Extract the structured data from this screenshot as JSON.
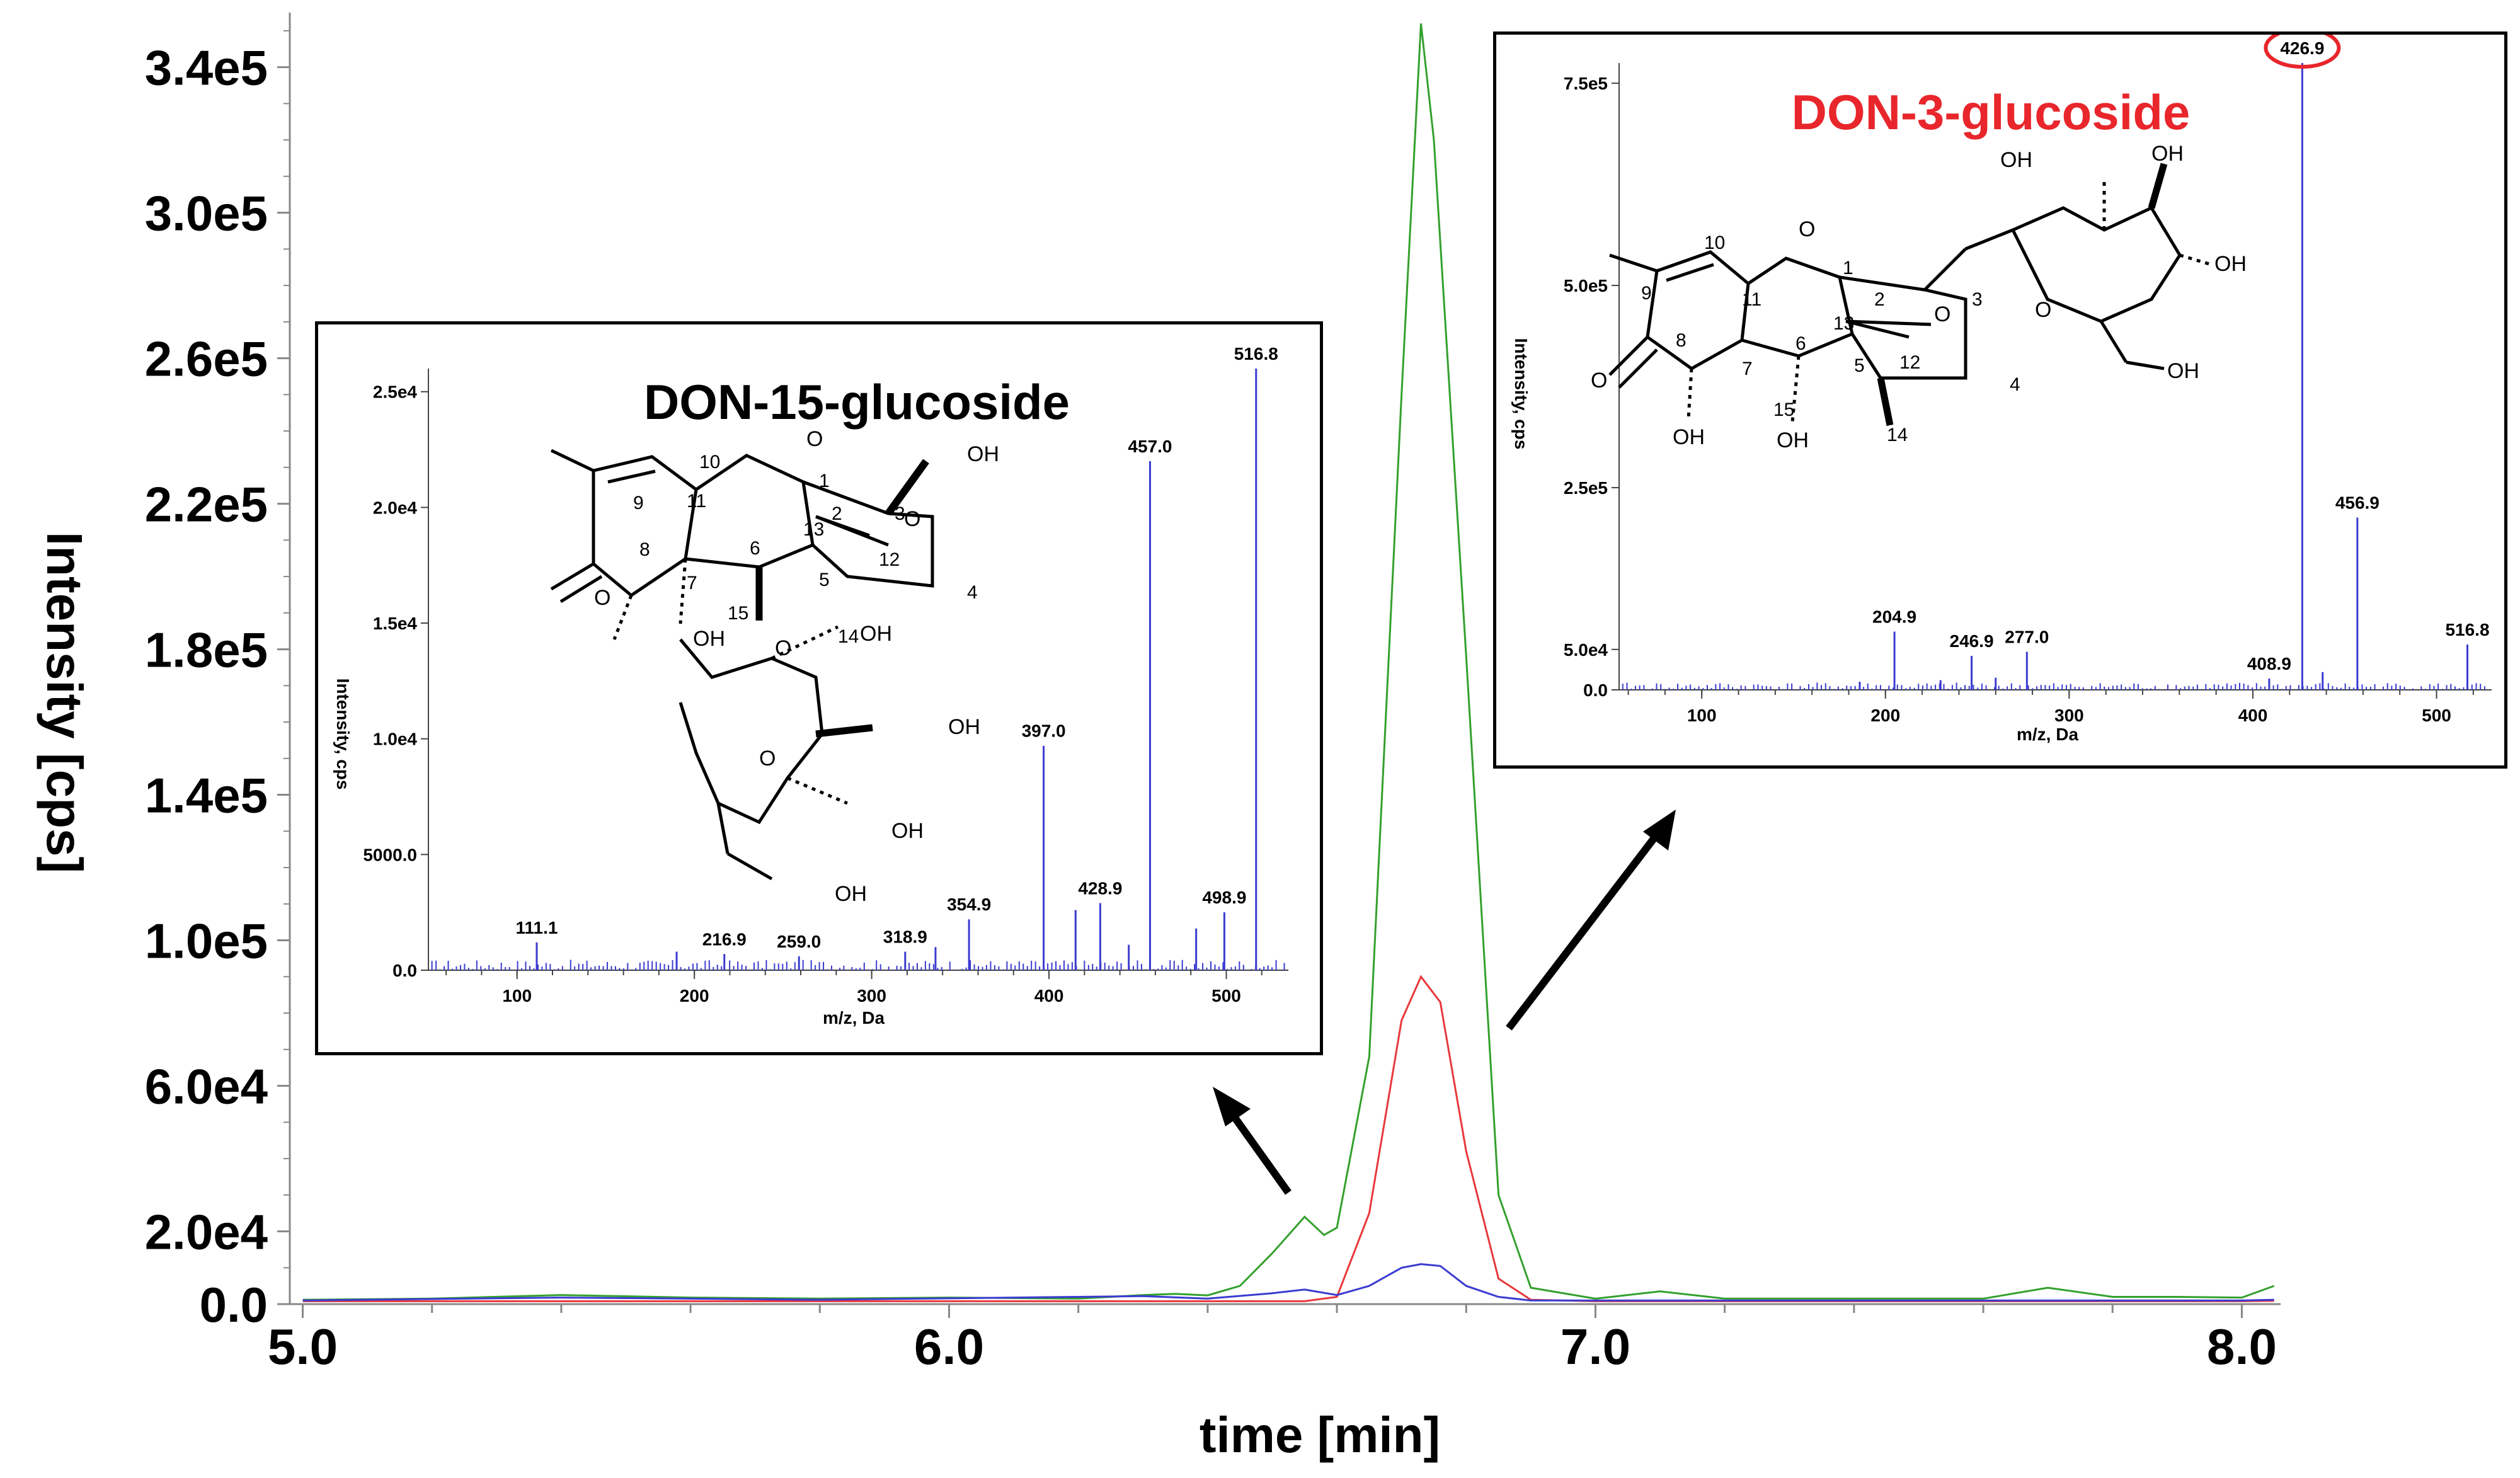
{
  "chart_data": [
    {
      "type": "line",
      "xlabel": "time [min]",
      "ylabel": "Intensity [cps]",
      "xlim": [
        4.98,
        8.06
      ],
      "ylim": [
        0,
        355000.0
      ],
      "xticks": [
        5.0,
        6.0,
        7.0,
        8.0
      ],
      "xtick_labels": [
        "5.0",
        "6.0",
        "7.0",
        "8.0"
      ],
      "yticks": [
        0,
        20000,
        60000,
        100000,
        140000,
        180000,
        220000,
        260000,
        300000,
        340000
      ],
      "ytick_labels": [
        "0.0",
        "2.0e4",
        "6.0e4",
        "1.0e5",
        "1.4e5",
        "1.8e5",
        "2.2e5",
        "2.6e5",
        "3.0e5",
        "3.4e5"
      ],
      "series": [
        {
          "color": "#33a02c",
          "x": [
            5.0,
            5.2,
            5.4,
            5.6,
            5.8,
            6.0,
            6.2,
            6.3,
            6.35,
            6.4,
            6.45,
            6.5,
            6.55,
            6.58,
            6.6,
            6.65,
            6.7,
            6.73,
            6.75,
            6.8,
            6.85,
            6.9,
            7.0,
            7.1,
            7.2,
            7.3,
            7.4,
            7.5,
            7.6,
            7.7,
            7.8,
            7.9,
            8.0,
            8.05
          ],
          "y": [
            1200,
            1500,
            2500,
            1800,
            1500,
            1800,
            1500,
            2500,
            2800,
            2400,
            5000,
            14000,
            24000,
            19000,
            21000,
            68000,
            250000,
            352000,
            320000,
            178000,
            30000,
            4500,
            1500,
            3500,
            1500,
            1500,
            1500,
            1500,
            1500,
            4500,
            2000,
            2000,
            1800,
            5000
          ]
        },
        {
          "color": "#e8383b",
          "x": [
            5.0,
            5.5,
            6.0,
            6.4,
            6.55,
            6.6,
            6.65,
            6.7,
            6.73,
            6.76,
            6.8,
            6.85,
            6.9,
            7.0,
            7.5,
            8.0,
            8.05
          ],
          "y": [
            800,
            800,
            800,
            800,
            800,
            2000,
            25000,
            78000,
            90000,
            83000,
            42000,
            7000,
            1200,
            800,
            800,
            800,
            900
          ]
        },
        {
          "color": "#3b3bd1",
          "x": [
            5.0,
            5.4,
            5.8,
            6.3,
            6.4,
            6.5,
            6.55,
            6.6,
            6.65,
            6.7,
            6.73,
            6.76,
            6.8,
            6.85,
            6.9,
            7.0,
            7.5,
            8.0,
            8.05
          ],
          "y": [
            1000,
            1800,
            1200,
            2200,
            1500,
            3000,
            4000,
            2500,
            5000,
            10000,
            11000,
            10500,
            5000,
            2000,
            1000,
            1000,
            1000,
            1000,
            1200
          ]
        }
      ]
    },
    {
      "type": "bar",
      "title": "DON-15-glucoside",
      "xlabel": "m/z, Da",
      "ylabel": "Intensity, cps",
      "xlim": [
        50,
        535
      ],
      "ylim": [
        0,
        26000
      ],
      "xticks": [
        100,
        200,
        300,
        400,
        500
      ],
      "xtick_labels": [
        "100",
        "200",
        "300",
        "400",
        "500"
      ],
      "yticks": [
        0,
        5000,
        10000,
        15000,
        20000,
        25000
      ],
      "ytick_labels": [
        "0.0",
        "5000.0",
        "1.0e4",
        "1.5e4",
        "2.0e4",
        "2.5e4"
      ],
      "peaks": [
        {
          "mz": 111.1,
          "intensity": 1200,
          "label": "111.1"
        },
        {
          "mz": 216.9,
          "intensity": 700,
          "label": "216.9"
        },
        {
          "mz": 259.0,
          "intensity": 600,
          "label": "259.0"
        },
        {
          "mz": 318.9,
          "intensity": 800,
          "label": "318.9"
        },
        {
          "mz": 354.9,
          "intensity": 2200,
          "label": "354.9"
        },
        {
          "mz": 397.0,
          "intensity": 9700,
          "label": "397.0"
        },
        {
          "mz": 428.9,
          "intensity": 2900,
          "label": "428.9"
        },
        {
          "mz": 457.0,
          "intensity": 22000,
          "label": "457.0"
        },
        {
          "mz": 498.9,
          "intensity": 2500,
          "label": "498.9"
        },
        {
          "mz": 516.8,
          "intensity": 26000,
          "label": "516.8"
        }
      ],
      "minor_peaks": [
        {
          "mz": 415,
          "intensity": 2600
        },
        {
          "mz": 483,
          "intensity": 1800
        },
        {
          "mz": 445,
          "intensity": 1100
        },
        {
          "mz": 336,
          "intensity": 1000
        },
        {
          "mz": 190,
          "intensity": 800
        }
      ]
    },
    {
      "type": "bar",
      "title": "DON-3-glucoside",
      "xlabel": "m/z, Da",
      "ylabel": "Intensity, cps",
      "xlim": [
        55,
        530
      ],
      "ylim": [
        0,
        775000.0
      ],
      "xticks": [
        100,
        200,
        300,
        400,
        500
      ],
      "xtick_labels": [
        "100",
        "200",
        "300",
        "400",
        "500"
      ],
      "yticks": [
        0,
        50000,
        250000,
        500000,
        750000
      ],
      "ytick_labels": [
        "0.0",
        "5.0e4",
        "2.5e5",
        "5.0e5",
        "7.5e5"
      ],
      "peaks": [
        {
          "mz": 204.9,
          "intensity": 72000,
          "label": "204.9"
        },
        {
          "mz": 246.9,
          "intensity": 42000,
          "label": "246.9"
        },
        {
          "mz": 277.0,
          "intensity": 47000,
          "label": "277.0"
        },
        {
          "mz": 408.9,
          "intensity": 14000,
          "label": "408.9"
        },
        {
          "mz": 426.9,
          "intensity": 775000,
          "label": "426.9",
          "highlight": true
        },
        {
          "mz": 456.9,
          "intensity": 213000,
          "label": "456.9"
        },
        {
          "mz": 516.8,
          "intensity": 56000,
          "label": "516.8"
        }
      ],
      "minor_peaks": [
        {
          "mz": 438,
          "intensity": 22000
        },
        {
          "mz": 230,
          "intensity": 12000
        },
        {
          "mz": 260,
          "intensity": 15000
        },
        {
          "mz": 186,
          "intensity": 10000
        }
      ]
    }
  ],
  "molecules": {
    "don15": {
      "atoms": [
        "10",
        "1",
        "11",
        "2",
        "3",
        "9",
        "8",
        "6",
        "13",
        "12",
        "5",
        "4",
        "7",
        "15",
        "14"
      ],
      "groups": [
        "O",
        "OH",
        "O",
        "O",
        "O",
        "OH",
        "OH",
        "OH",
        "OH",
        "O",
        "OH"
      ]
    },
    "don3": {
      "atoms": [
        "10",
        "1",
        "9",
        "11",
        "2",
        "3",
        "13",
        "8",
        "7",
        "6",
        "12",
        "5",
        "4",
        "15",
        "14"
      ],
      "groups": [
        "O",
        "O",
        "O",
        "O",
        "OH",
        "OH",
        "OH",
        "OH",
        "OH",
        "OH"
      ]
    }
  }
}
